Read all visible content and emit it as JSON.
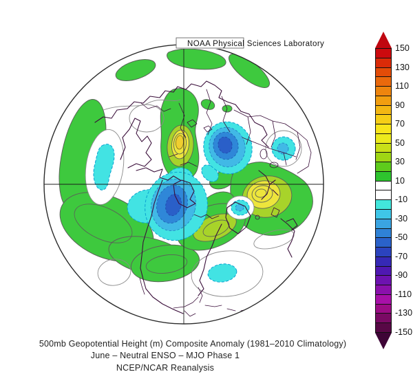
{
  "header": {
    "title": "NOAA Physical Sciences Laboratory"
  },
  "captions": {
    "line1": "500mb Geopotential Height (m) Composite Anomaly (1981–2010 Climatology)",
    "line2": "June – Neutral ENSO – MJO Phase 1",
    "line3": "NCEP/NCAR Reanalysis"
  },
  "colorbar": {
    "tick_labels": [
      "150",
      "130",
      "110",
      "90",
      "70",
      "50",
      "30",
      "10",
      "-10",
      "-30",
      "-50",
      "-70",
      "-90",
      "-110",
      "-130",
      "-150"
    ],
    "segment_colors": [
      "#CC0A0E",
      "#DA2B08",
      "#E34C08",
      "#EA690C",
      "#EE850E",
      "#F19E10",
      "#F3B713",
      "#F6CE16",
      "#F8E51A",
      "#ECEA1C",
      "#C9E018",
      "#9FD614",
      "#5ECB1C",
      "#2EC42E",
      "#FFFFFF",
      "#FFFFFF",
      "#42E6DC",
      "#3FC6E8",
      "#3AA4E2",
      "#2F82D6",
      "#2A62CA",
      "#2B43BE",
      "#3629B6",
      "#4F18B2",
      "#6D12B0",
      "#8B10AC",
      "#A810A8",
      "#9C0C86",
      "#7A0A64",
      "#580846"
    ],
    "top_arrow_color": "#C00710",
    "bottom_arrow_color": "#3E0536"
  },
  "palette": {
    "green": "#3EC93E",
    "yellow_green": "#A8D32A",
    "yellow": "#EDE53C",
    "yellow_core": "#EFCE2F",
    "cyan": "#42E3E3",
    "light_blue": "#41B9E6",
    "mid_blue": "#2F87D8",
    "dark_blue": "#2A5FC8",
    "coast": "#3A0E3A",
    "contour_pos": "#5A6258",
    "contour_zero": "#8A8A8A",
    "neg_dash": "#0AA0D0"
  }
}
